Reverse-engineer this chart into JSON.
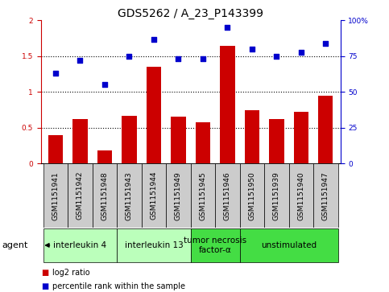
{
  "title": "GDS5262 / A_23_P143399",
  "samples": [
    "GSM1151941",
    "GSM1151942",
    "GSM1151948",
    "GSM1151943",
    "GSM1151944",
    "GSM1151949",
    "GSM1151945",
    "GSM1151946",
    "GSM1151950",
    "GSM1151939",
    "GSM1151940",
    "GSM1151947"
  ],
  "log2_ratio": [
    0.4,
    0.62,
    0.18,
    0.67,
    1.35,
    0.65,
    0.58,
    1.65,
    0.75,
    0.62,
    0.72,
    0.95
  ],
  "percentile_rank": [
    63,
    72,
    55,
    75,
    87,
    73,
    73,
    95,
    80,
    75,
    78,
    84
  ],
  "bar_color": "#cc0000",
  "dot_color": "#0000cc",
  "ylim_left": [
    0,
    2
  ],
  "ylim_right": [
    0,
    100
  ],
  "yticks_left": [
    0,
    0.5,
    1.0,
    1.5,
    2.0
  ],
  "yticks_right": [
    0,
    25,
    50,
    75,
    100
  ],
  "ytick_labels_right": [
    "0",
    "25",
    "50",
    "75",
    "100%"
  ],
  "hlines": [
    0.5,
    1.0,
    1.5
  ],
  "agents": [
    {
      "label": "interleukin 4",
      "start": 0,
      "end": 3,
      "color": "#bbffbb"
    },
    {
      "label": "interleukin 13",
      "start": 3,
      "end": 6,
      "color": "#bbffbb"
    },
    {
      "label": "tumor necrosis\nfactor-α",
      "start": 6,
      "end": 8,
      "color": "#44dd44"
    },
    {
      "label": "unstimulated",
      "start": 8,
      "end": 12,
      "color": "#44dd44"
    }
  ],
  "agent_label": "agent",
  "legend_bar_label": "log2 ratio",
  "legend_dot_label": "percentile rank within the sample",
  "sample_box_color": "#cccccc",
  "plot_bg_color": "#ffffff",
  "title_fontsize": 10,
  "tick_fontsize": 6.5,
  "agent_fontsize": 7.5,
  "sample_fontsize": 6.5
}
